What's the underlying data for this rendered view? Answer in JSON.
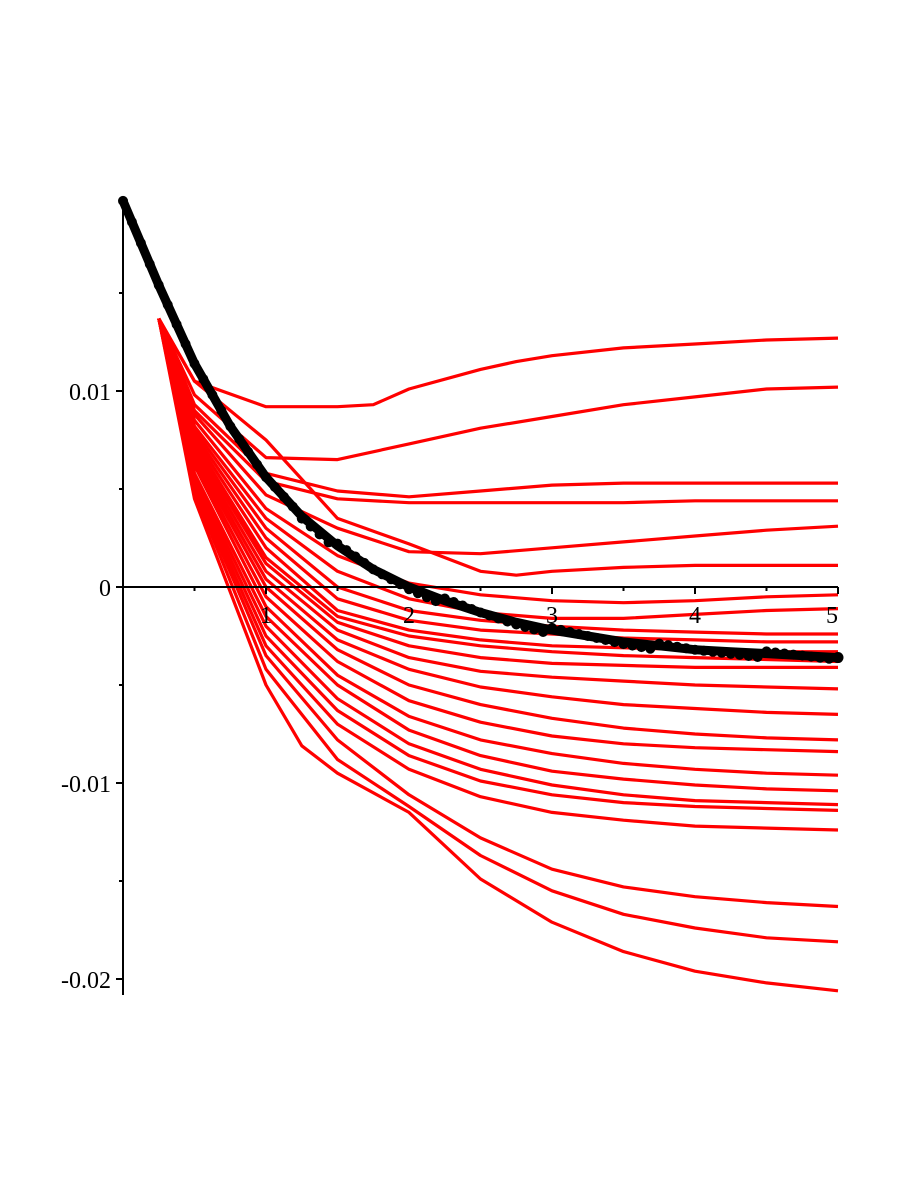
{
  "chart_data": {
    "type": "line",
    "title": "",
    "xlabel": "",
    "ylabel": "",
    "xlim": [
      0,
      5
    ],
    "ylim": [
      -0.021,
      0.02
    ],
    "grid": false,
    "legend": "none",
    "colors": {
      "simulations": "#ff0000",
      "mean": "#000000",
      "axes": "#000000"
    },
    "x_ticks": [
      {
        "value": 1,
        "label": "1"
      },
      {
        "value": 2,
        "label": "2"
      },
      {
        "value": 3,
        "label": "3"
      },
      {
        "value": 4,
        "label": "4"
      },
      {
        "value": 5,
        "label": "5"
      }
    ],
    "y_ticks": [
      {
        "value": 0.01,
        "label": "0.01"
      },
      {
        "value": 0,
        "label": "0"
      },
      {
        "value": -0.01,
        "label": "-0.01"
      },
      {
        "value": -0.02,
        "label": "-0.02"
      }
    ],
    "y_minor_ticks": [
      0.015,
      0.005,
      -0.005,
      -0.015
    ],
    "x_minor_ticks": [
      0.5,
      1.5,
      2.5,
      3.5,
      4.5
    ],
    "mean_curve": {
      "style": "dots",
      "x": [
        0,
        0.25,
        0.5,
        0.75,
        1,
        1.25,
        1.5,
        1.75,
        2,
        2.25,
        2.5,
        2.75,
        3,
        3.25,
        3.5,
        3.75,
        4,
        4.25,
        4.5,
        4.75,
        5
      ],
      "y": [
        0.0197,
        0.0154,
        0.0114,
        0.0082,
        0.0056,
        0.0036,
        0.0021,
        0.0009,
        0.0,
        -0.0007,
        -0.0013,
        -0.0018,
        -0.0022,
        -0.0025,
        -0.0028,
        -0.003,
        -0.0032,
        -0.0033,
        -0.0034,
        -0.0035,
        -0.0036
      ]
    },
    "series": [
      {
        "x": [
          0.25,
          0.5,
          1,
          1.5,
          1.75,
          2,
          2.5,
          2.75,
          3,
          3.5,
          4,
          4.5,
          5
        ],
        "y": [
          0.0137,
          0.0105,
          0.0092,
          0.0092,
          0.0093,
          0.0101,
          0.0111,
          0.0115,
          0.0118,
          0.0122,
          0.0124,
          0.0126,
          0.0127
        ]
      },
      {
        "x": [
          0.25,
          0.5,
          1,
          1.5,
          2,
          2.5,
          3,
          3.5,
          4,
          4.5,
          5
        ],
        "y": [
          0.0137,
          0.0098,
          0.0066,
          0.0065,
          0.0073,
          0.0081,
          0.0087,
          0.0093,
          0.0097,
          0.0101,
          0.0102
        ]
      },
      {
        "x": [
          0.25,
          0.5,
          1,
          1.5,
          2,
          2.5,
          3,
          3.5,
          4,
          4.5,
          5
        ],
        "y": [
          0.0137,
          0.0093,
          0.0058,
          0.0049,
          0.0046,
          0.0049,
          0.0052,
          0.0053,
          0.0053,
          0.0053,
          0.0053
        ]
      },
      {
        "x": [
          0.25,
          0.5,
          1,
          1.5,
          2,
          2.5,
          3,
          3.5,
          4,
          4.5,
          5
        ],
        "y": [
          0.0137,
          0.009,
          0.0054,
          0.0045,
          0.0043,
          0.0043,
          0.0043,
          0.0043,
          0.0044,
          0.0044,
          0.0044
        ]
      },
      {
        "x": [
          0.25,
          0.5,
          1,
          1.5,
          2,
          2.5,
          3,
          3.5,
          4,
          4.5,
          5
        ],
        "y": [
          0.0137,
          0.0088,
          0.0047,
          0.003,
          0.0018,
          0.0017,
          0.002,
          0.0023,
          0.0026,
          0.0029,
          0.0031
        ]
      },
      {
        "x": [
          0.25,
          0.5,
          1,
          1.5,
          2,
          2.5,
          2.75,
          3,
          3.5,
          4,
          4.5,
          5
        ],
        "y": [
          0.0137,
          0.0105,
          0.0075,
          0.0035,
          0.0022,
          0.0008,
          0.0006,
          0.0008,
          0.001,
          0.0011,
          0.0011,
          0.0011
        ]
      },
      {
        "x": [
          0.25,
          0.5,
          1,
          1.5,
          2,
          2.5,
          3,
          3.5,
          4,
          4.5,
          5
        ],
        "y": [
          0.0137,
          0.0085,
          0.004,
          0.0016,
          0.0002,
          -0.0004,
          -0.0007,
          -0.0008,
          -0.0007,
          -0.0005,
          -0.0004
        ]
      },
      {
        "x": [
          0.25,
          0.5,
          1,
          1.5,
          2,
          2.5,
          3,
          3.5,
          4,
          4.5,
          5
        ],
        "y": [
          0.0137,
          0.0082,
          0.0035,
          0.0008,
          -0.0006,
          -0.0013,
          -0.0016,
          -0.0016,
          -0.0014,
          -0.0012,
          -0.0011
        ]
      },
      {
        "x": [
          0.25,
          0.5,
          1,
          1.5,
          2,
          2.5,
          3,
          3.5,
          4,
          4.5,
          5
        ],
        "y": [
          0.0137,
          0.008,
          0.003,
          0.0,
          -0.0012,
          -0.0017,
          -0.002,
          -0.0022,
          -0.0023,
          -0.0024,
          -0.0024
        ]
      },
      {
        "x": [
          0.25,
          0.5,
          1,
          1.5,
          2,
          2.5,
          3,
          3.5,
          4,
          4.5,
          5
        ],
        "y": [
          0.0137,
          0.0078,
          0.0025,
          -0.0006,
          -0.0017,
          -0.0022,
          -0.0024,
          -0.0026,
          -0.0027,
          -0.0028,
          -0.0028
        ]
      },
      {
        "x": [
          0.25,
          0.5,
          1,
          1.5,
          2,
          2.5,
          3,
          3.5,
          4,
          4.5,
          5
        ],
        "y": [
          0.0137,
          0.0076,
          0.002,
          -0.0012,
          -0.0022,
          -0.0027,
          -0.003,
          -0.0031,
          -0.0032,
          -0.0033,
          -0.0033
        ]
      },
      {
        "x": [
          0.25,
          0.5,
          1,
          1.5,
          2,
          2.5,
          3,
          3.5,
          4,
          4.5,
          5
        ],
        "y": [
          0.0137,
          0.0074,
          0.0015,
          -0.0015,
          -0.0025,
          -0.003,
          -0.0033,
          -0.0035,
          -0.0036,
          -0.0037,
          -0.0038
        ]
      },
      {
        "x": [
          0.25,
          0.5,
          1,
          1.5,
          2,
          2.5,
          3,
          3.5,
          4,
          4.5,
          5
        ],
        "y": [
          0.0137,
          0.0072,
          0.0012,
          -0.0018,
          -0.003,
          -0.0036,
          -0.0039,
          -0.004,
          -0.0041,
          -0.0041,
          -0.0041
        ]
      },
      {
        "x": [
          0.25,
          0.5,
          1,
          1.5,
          2,
          2.5,
          3,
          3.5,
          4,
          4.5,
          5
        ],
        "y": [
          0.0137,
          0.007,
          0.0008,
          -0.0022,
          -0.0036,
          -0.0043,
          -0.0046,
          -0.0048,
          -0.005,
          -0.0051,
          -0.0052
        ]
      },
      {
        "x": [
          0.25,
          0.5,
          1,
          1.5,
          2,
          2.5,
          3,
          3.5,
          4,
          4.5,
          5
        ],
        "y": [
          0.0137,
          0.0068,
          0.0004,
          -0.0027,
          -0.0042,
          -0.0051,
          -0.0056,
          -0.006,
          -0.0062,
          -0.0064,
          -0.0065
        ]
      },
      {
        "x": [
          0.25,
          0.5,
          1,
          1.5,
          2,
          2.5,
          3,
          3.5,
          4,
          4.5,
          5
        ],
        "y": [
          0.0137,
          0.0066,
          0.0,
          -0.0032,
          -0.005,
          -0.006,
          -0.0067,
          -0.0072,
          -0.0075,
          -0.0077,
          -0.0078
        ]
      },
      {
        "x": [
          0.25,
          0.5,
          1,
          1.5,
          2,
          2.5,
          3,
          3.5,
          4,
          4.5,
          5
        ],
        "y": [
          0.0137,
          0.0064,
          -0.0005,
          -0.0038,
          -0.0058,
          -0.0069,
          -0.0076,
          -0.008,
          -0.0082,
          -0.0083,
          -0.0084
        ]
      },
      {
        "x": [
          0.25,
          0.5,
          1,
          1.5,
          2,
          2.5,
          3,
          3.5,
          4,
          4.5,
          5
        ],
        "y": [
          0.0137,
          0.0062,
          -0.001,
          -0.0045,
          -0.0066,
          -0.0078,
          -0.0085,
          -0.009,
          -0.0093,
          -0.0095,
          -0.0096
        ]
      },
      {
        "x": [
          0.25,
          0.5,
          1,
          1.5,
          2,
          2.5,
          3,
          3.5,
          4,
          4.5,
          5
        ],
        "y": [
          0.0137,
          0.0058,
          -0.0015,
          -0.005,
          -0.0073,
          -0.0086,
          -0.0094,
          -0.0098,
          -0.0101,
          -0.0103,
          -0.0104
        ]
      },
      {
        "x": [
          0.25,
          0.5,
          1,
          1.5,
          2,
          2.5,
          3,
          3.5,
          4,
          4.5,
          5
        ],
        "y": [
          0.0137,
          0.0056,
          -0.002,
          -0.0057,
          -0.008,
          -0.0093,
          -0.0101,
          -0.0106,
          -0.0109,
          -0.011,
          -0.0111
        ]
      },
      {
        "x": [
          0.25,
          0.5,
          1,
          1.5,
          2,
          2.5,
          3,
          3.5,
          4,
          4.5,
          5
        ],
        "y": [
          0.0137,
          0.0054,
          -0.0025,
          -0.0063,
          -0.0086,
          -0.0099,
          -0.0106,
          -0.011,
          -0.0112,
          -0.0113,
          -0.0114
        ]
      },
      {
        "x": [
          0.25,
          0.5,
          1,
          1.5,
          2,
          2.5,
          3,
          3.5,
          4,
          4.5,
          5
        ],
        "y": [
          0.0137,
          0.0052,
          -0.003,
          -0.007,
          -0.0093,
          -0.0107,
          -0.0115,
          -0.0119,
          -0.0122,
          -0.0123,
          -0.0124
        ]
      },
      {
        "x": [
          0.25,
          0.5,
          1,
          1.5,
          2,
          2.5,
          3,
          3.5,
          4,
          4.5,
          5
        ],
        "y": [
          0.0137,
          0.005,
          -0.0035,
          -0.0078,
          -0.0106,
          -0.0128,
          -0.0144,
          -0.0153,
          -0.0158,
          -0.0161,
          -0.0163
        ]
      },
      {
        "x": [
          0.25,
          0.5,
          1,
          1.5,
          2,
          2.5,
          3,
          3.5,
          4,
          4.5,
          5
        ],
        "y": [
          0.0137,
          0.0048,
          -0.0042,
          -0.0088,
          -0.0112,
          -0.0137,
          -0.0155,
          -0.0167,
          -0.0174,
          -0.0179,
          -0.0181
        ]
      },
      {
        "x": [
          0.25,
          0.5,
          1,
          1.25,
          1.5,
          2,
          2.5,
          3,
          3.5,
          4,
          4.5,
          5
        ],
        "y": [
          0.0137,
          0.0045,
          -0.005,
          -0.0081,
          -0.0095,
          -0.0115,
          -0.0149,
          -0.0171,
          -0.0186,
          -0.0196,
          -0.0202,
          -0.0206
        ]
      }
    ]
  }
}
